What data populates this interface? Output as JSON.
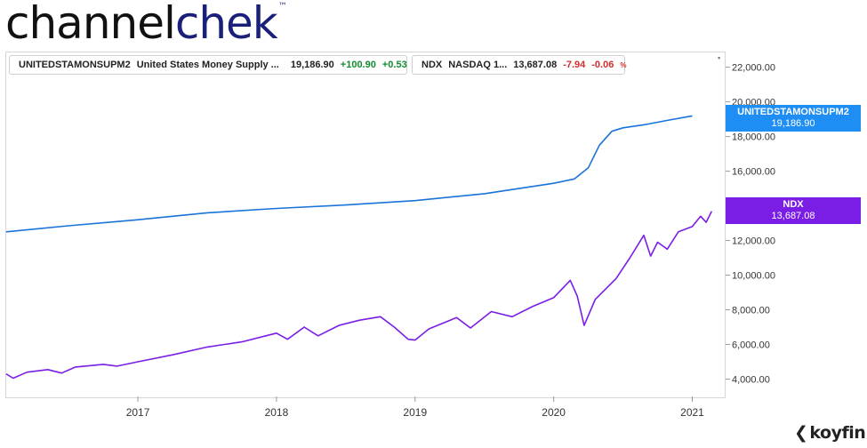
{
  "brand": {
    "part1": "channel",
    "part2": "chek",
    "tm": "™"
  },
  "menu_icon": "dots-icon",
  "legend": [
    {
      "ticker": "UNITEDSTAMONSUPM2",
      "name": "United States Money Supply ...",
      "last": "19,186.90",
      "change": "+100.90",
      "pct": "+0.53",
      "pct_sign": "%",
      "color": "#1a73d9",
      "direction": "up"
    },
    {
      "ticker": "NDX",
      "name": "NASDAQ 1...",
      "last": "13,687.08",
      "change": "-7.94",
      "pct": "-0.06",
      "pct_sign": "%",
      "color": "#7a1ee6",
      "direction": "down"
    }
  ],
  "price_tags": [
    {
      "line1": "UNITEDSTAMONSUPM2",
      "line2": "19,186.90",
      "color": "#1e8ef5"
    },
    {
      "line1": "NDX",
      "line2": "13,687.08",
      "color": "#7a1ee6"
    }
  ],
  "footer": {
    "logo_text": "koyfin",
    "logo_icon": "koyfin-k-icon"
  },
  "chart_data": {
    "type": "line",
    "title": "",
    "xlabel": "",
    "ylabel": "",
    "x_ticks": [
      "2017",
      "2018",
      "2019",
      "2020",
      "2021"
    ],
    "y_ticks": [
      "4,000.00",
      "6,000.00",
      "8,000.00",
      "10,000.00",
      "12,000.00",
      "14,000.00",
      "16,000.00",
      "18,000.00",
      "20,000.00",
      "22,000.00"
    ],
    "ylim": [
      3000,
      22800
    ],
    "xlim": [
      2016.05,
      2021.17
    ],
    "y_axis_position": "right",
    "grid": false,
    "series": [
      {
        "name": "UNITEDSTAMONSUPM2",
        "color": "#1a73d9",
        "points": [
          [
            2016.05,
            12500
          ],
          [
            2016.5,
            12850
          ],
          [
            2017.0,
            13200
          ],
          [
            2017.5,
            13600
          ],
          [
            2018.0,
            13850
          ],
          [
            2018.5,
            14050
          ],
          [
            2019.0,
            14300
          ],
          [
            2019.5,
            14700
          ],
          [
            2020.0,
            15300
          ],
          [
            2020.15,
            15550
          ],
          [
            2020.25,
            16200
          ],
          [
            2020.33,
            17500
          ],
          [
            2020.42,
            18300
          ],
          [
            2020.5,
            18500
          ],
          [
            2020.67,
            18700
          ],
          [
            2020.83,
            18950
          ],
          [
            2021.0,
            19186.9
          ]
        ]
      },
      {
        "name": "NDX",
        "color": "#7a1ee6",
        "points": [
          [
            2016.05,
            4300
          ],
          [
            2016.1,
            4050
          ],
          [
            2016.2,
            4400
          ],
          [
            2016.35,
            4550
          ],
          [
            2016.45,
            4350
          ],
          [
            2016.55,
            4700
          ],
          [
            2016.75,
            4850
          ],
          [
            2016.85,
            4750
          ],
          [
            2017.0,
            5000
          ],
          [
            2017.25,
            5400
          ],
          [
            2017.5,
            5850
          ],
          [
            2017.75,
            6150
          ],
          [
            2018.0,
            6650
          ],
          [
            2018.08,
            6300
          ],
          [
            2018.2,
            7000
          ],
          [
            2018.3,
            6500
          ],
          [
            2018.45,
            7100
          ],
          [
            2018.6,
            7400
          ],
          [
            2018.75,
            7600
          ],
          [
            2018.85,
            7000
          ],
          [
            2018.95,
            6300
          ],
          [
            2019.0,
            6250
          ],
          [
            2019.1,
            6900
          ],
          [
            2019.3,
            7550
          ],
          [
            2019.4,
            6950
          ],
          [
            2019.55,
            7900
          ],
          [
            2019.7,
            7600
          ],
          [
            2019.85,
            8200
          ],
          [
            2020.0,
            8700
          ],
          [
            2020.12,
            9700
          ],
          [
            2020.17,
            8800
          ],
          [
            2020.22,
            7100
          ],
          [
            2020.3,
            8600
          ],
          [
            2020.45,
            9800
          ],
          [
            2020.55,
            11000
          ],
          [
            2020.65,
            12300
          ],
          [
            2020.7,
            11100
          ],
          [
            2020.75,
            11900
          ],
          [
            2020.82,
            11500
          ],
          [
            2020.9,
            12500
          ],
          [
            2021.0,
            12800
          ],
          [
            2021.06,
            13400
          ],
          [
            2021.1,
            13050
          ],
          [
            2021.14,
            13687.08
          ]
        ]
      }
    ]
  }
}
